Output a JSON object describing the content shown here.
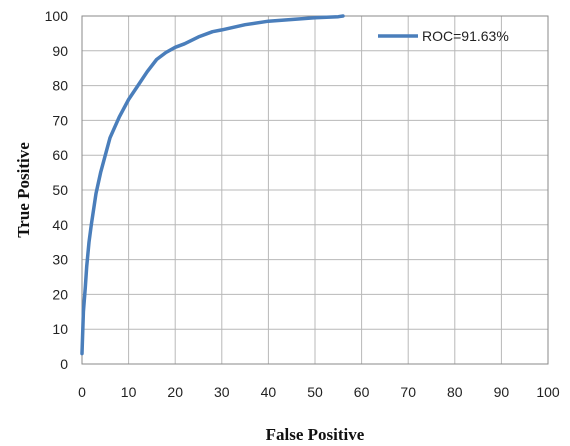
{
  "chart_data": {
    "type": "line",
    "title": "",
    "xlabel": "False Positive",
    "ylabel": "True Positive",
    "xlim": [
      0,
      100
    ],
    "ylim": [
      0,
      100
    ],
    "xticks": [
      "0",
      "10",
      "20",
      "30",
      "40",
      "50",
      "60",
      "70",
      "80",
      "90",
      "100"
    ],
    "yticks": [
      "0",
      "10",
      "20",
      "30",
      "40",
      "50",
      "60",
      "70",
      "80",
      "90",
      "100"
    ],
    "grid": true,
    "legend_position": "top-right",
    "series": [
      {
        "name": "ROC=91.63%",
        "color": "#4a7ebb",
        "x": [
          0,
          0.3,
          0.7,
          1,
          1.5,
          2,
          3,
          4,
          5,
          6,
          8,
          10,
          12,
          14,
          16,
          18,
          20,
          22,
          25,
          28,
          30,
          35,
          40,
          45,
          50,
          55,
          56
        ],
        "y": [
          3,
          15,
          22,
          28,
          35,
          40,
          49,
          55,
          60,
          65,
          71,
          76,
          80,
          84,
          87.5,
          89.5,
          91,
          92,
          94,
          95.5,
          96,
          97.5,
          98.5,
          99,
          99.5,
          99.8,
          100
        ]
      }
    ]
  }
}
